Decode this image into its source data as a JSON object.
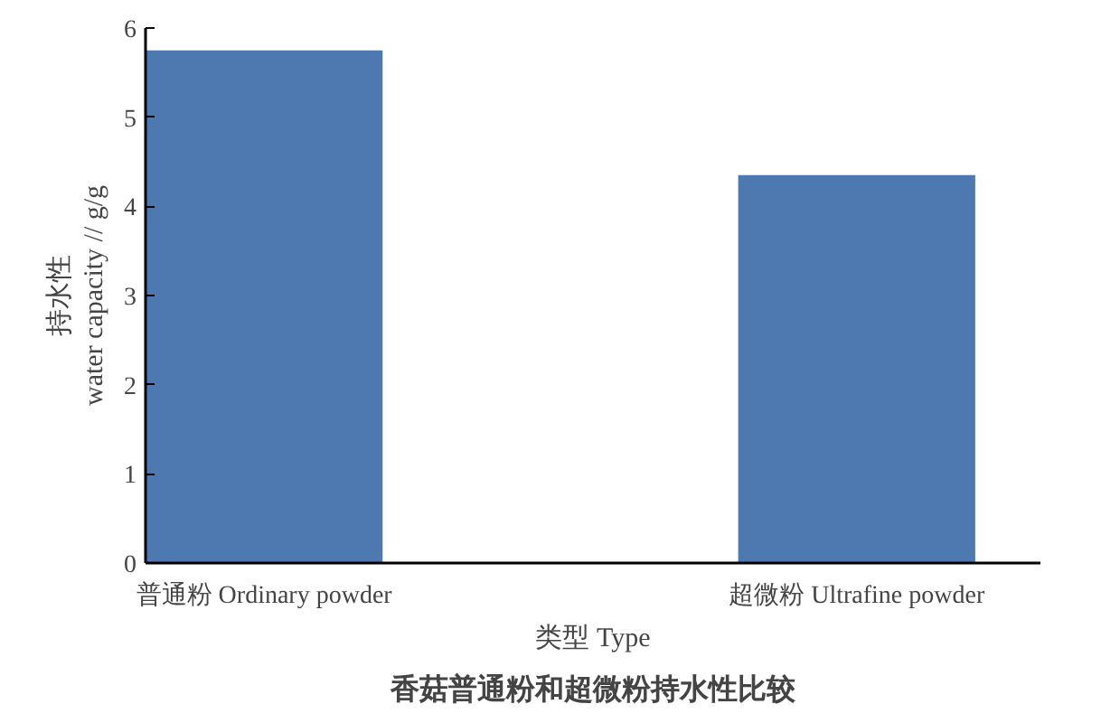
{
  "chart_data": {
    "type": "bar",
    "title": "香菇普通粉和超微粉持水性比较",
    "xlabel": "类型 Type",
    "ylabel": "持水性\nwater capacity // g/g",
    "categories": [
      "普通粉 Ordinary powder",
      "超微粉 Ultrafine powder"
    ],
    "values": [
      5.75,
      4.35
    ],
    "color": "#4e79b0",
    "ylim": [
      0,
      6
    ],
    "yticks": [
      0,
      1,
      2,
      3,
      4,
      5,
      6
    ],
    "grid": false
  }
}
